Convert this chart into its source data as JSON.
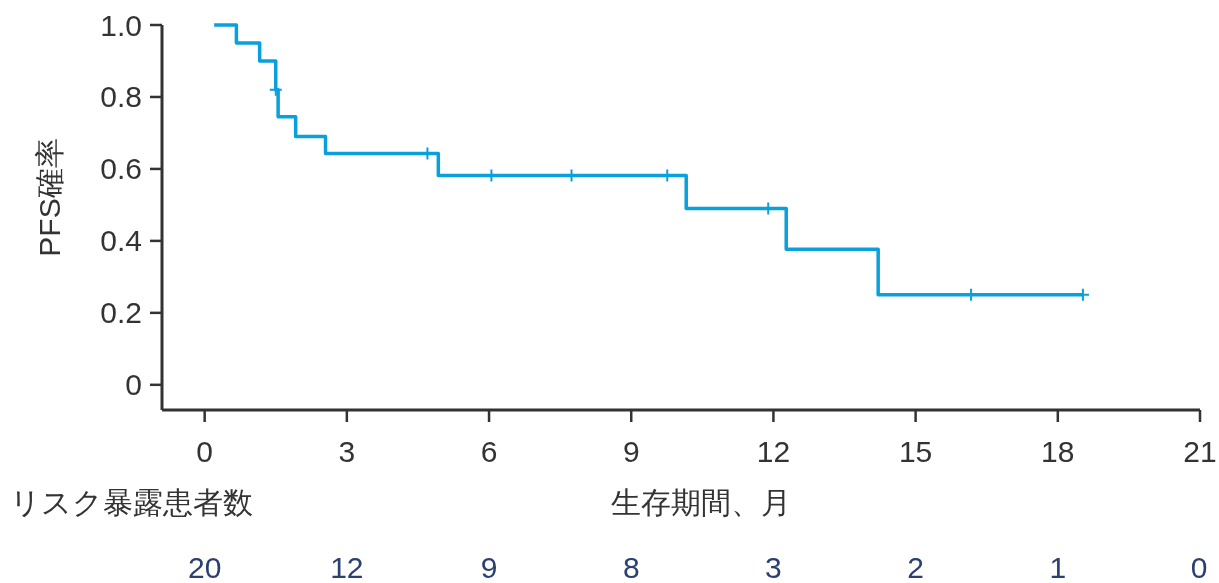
{
  "chart_data": {
    "type": "step",
    "xlabel": "生存期間、月",
    "ylabel": "PFS確率",
    "xlim": [
      -0.9,
      21
    ],
    "ylim": [
      -0.07,
      1.0
    ],
    "xticks": [
      0,
      3,
      6,
      9,
      12,
      15,
      18,
      21
    ],
    "yticks": [
      0,
      0.2,
      0.4,
      0.6,
      0.8,
      {
        "value": 1.0,
        "label": "1.0"
      }
    ],
    "grid": false,
    "series": [
      {
        "color": "#0aa0dc",
        "x": [
          0.2,
          0.67,
          1.16,
          1.5,
          1.55,
          1.92,
          2.55,
          4.93,
          10.16,
          12.27,
          14.21,
          18.53
        ],
        "values": [
          1.0,
          0.95,
          0.9,
          0.82,
          0.745,
          0.69,
          0.643,
          0.582,
          0.49,
          0.377,
          0.25,
          0.25
        ]
      },
      {
        "type": "scatter",
        "color": "#0aa0dc",
        "marker": "cross",
        "x": [
          1.5,
          4.7,
          6.05,
          7.74,
          9.76,
          11.89,
          16.17,
          18.53
        ],
        "values": [
          0.82,
          0.643,
          0.582,
          0.582,
          0.582,
          0.49,
          0.25,
          0.25
        ]
      }
    ],
    "annotations": [
      "リスク暴露患者数",
      "20",
      "12",
      "9",
      "8",
      "3",
      "2",
      "1",
      "0"
    ]
  }
}
